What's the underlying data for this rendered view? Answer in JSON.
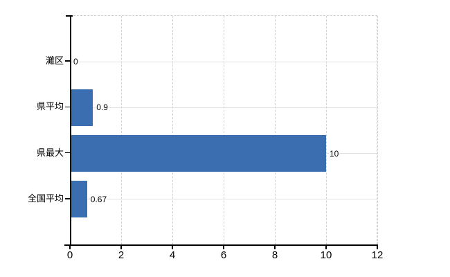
{
  "chart_data": {
    "type": "bar",
    "orientation": "horizontal",
    "title": "",
    "xlabel": "",
    "ylabel": "",
    "categories": [
      "灘区",
      "県平均",
      "県最大",
      "全国平均"
    ],
    "values": [
      0,
      0.9,
      10,
      0.67
    ],
    "value_labels": [
      "0",
      "0.9",
      "10",
      "0.67"
    ],
    "x_ticks": [
      0,
      2,
      4,
      6,
      8,
      10,
      12
    ],
    "x_tick_labels": [
      "0",
      "2",
      "4",
      "6",
      "8",
      "10",
      "12"
    ],
    "xlim": [
      0,
      12
    ],
    "legend": "none",
    "grid": {
      "vertical": "dashed",
      "horizontal": "solid"
    },
    "colors": {
      "bar": "#3B6DB1",
      "h_grid": "#dfe3df",
      "v_grid": "#d4ced4",
      "axis": "#000000",
      "text": "#000000",
      "background": "#ffffff"
    }
  }
}
